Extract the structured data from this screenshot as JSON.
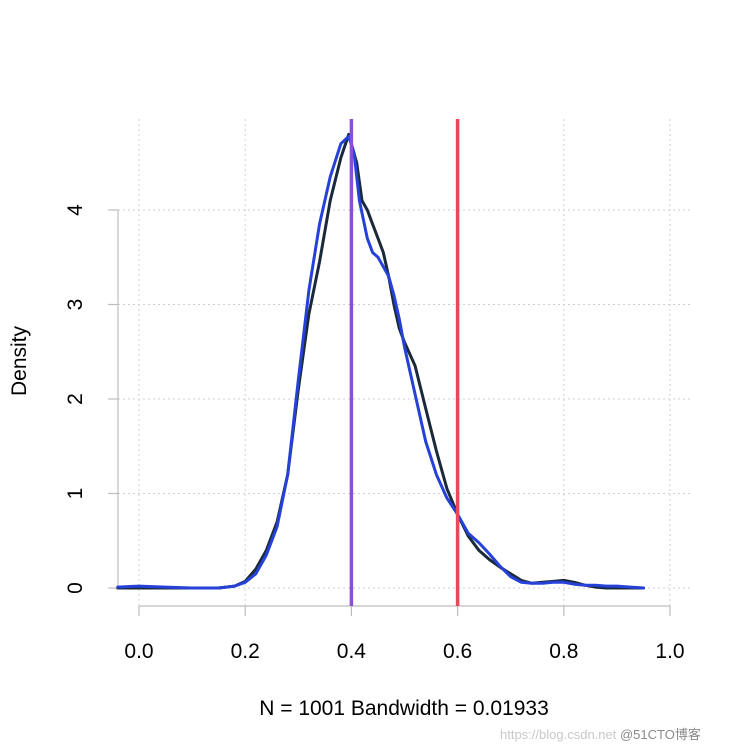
{
  "chart_data": {
    "type": "line",
    "title": "",
    "xlabel": "N = 1001   Bandwidth = 0.01933",
    "ylabel": "Density",
    "xlim": [
      -0.04,
      1.0
    ],
    "ylim": [
      0,
      4.8
    ],
    "x_ticks": [
      0.0,
      0.2,
      0.4,
      0.6,
      0.8,
      1.0
    ],
    "x_tick_labels": [
      "0.0",
      "0.2",
      "0.4",
      "0.6",
      "0.8",
      "1.0"
    ],
    "y_ticks": [
      0,
      1,
      2,
      3,
      4
    ],
    "y_tick_labels": [
      "0",
      "1",
      "2",
      "3",
      "4"
    ],
    "grid": true,
    "legend": "none",
    "series": [
      {
        "color": "#1a2a3a",
        "x": [
          -0.04,
          0.0,
          0.05,
          0.1,
          0.15,
          0.18,
          0.2,
          0.22,
          0.24,
          0.26,
          0.28,
          0.3,
          0.32,
          0.34,
          0.36,
          0.38,
          0.395,
          0.41,
          0.42,
          0.43,
          0.44,
          0.45,
          0.46,
          0.47,
          0.48,
          0.49,
          0.5,
          0.52,
          0.54,
          0.56,
          0.58,
          0.6,
          0.62,
          0.64,
          0.66,
          0.68,
          0.7,
          0.72,
          0.74,
          0.76,
          0.78,
          0.8,
          0.82,
          0.84,
          0.86,
          0.88,
          0.9,
          0.95
        ],
        "y": [
          0.0,
          0.0,
          0.0,
          0.0,
          0.0,
          0.02,
          0.07,
          0.2,
          0.4,
          0.7,
          1.2,
          2.1,
          2.9,
          3.45,
          4.1,
          4.55,
          4.8,
          4.5,
          4.1,
          4.0,
          3.85,
          3.7,
          3.55,
          3.3,
          3.0,
          2.75,
          2.6,
          2.35,
          1.9,
          1.45,
          1.05,
          0.78,
          0.55,
          0.4,
          0.3,
          0.22,
          0.15,
          0.08,
          0.05,
          0.06,
          0.07,
          0.08,
          0.06,
          0.03,
          0.01,
          0.0,
          0.0,
          0.0
        ]
      },
      {
        "color": "#2641d8",
        "x": [
          -0.04,
          0.0,
          0.05,
          0.1,
          0.15,
          0.18,
          0.2,
          0.22,
          0.24,
          0.26,
          0.28,
          0.3,
          0.32,
          0.34,
          0.36,
          0.38,
          0.395,
          0.405,
          0.415,
          0.43,
          0.44,
          0.45,
          0.46,
          0.47,
          0.48,
          0.49,
          0.5,
          0.52,
          0.54,
          0.56,
          0.58,
          0.6,
          0.62,
          0.64,
          0.66,
          0.68,
          0.7,
          0.72,
          0.74,
          0.76,
          0.78,
          0.8,
          0.82,
          0.84,
          0.86,
          0.88,
          0.9,
          0.95
        ],
        "y": [
          0.01,
          0.02,
          0.01,
          0.0,
          0.0,
          0.02,
          0.06,
          0.15,
          0.35,
          0.65,
          1.2,
          2.2,
          3.15,
          3.85,
          4.35,
          4.7,
          4.78,
          4.6,
          4.1,
          3.7,
          3.55,
          3.5,
          3.4,
          3.3,
          3.1,
          2.85,
          2.55,
          2.05,
          1.55,
          1.2,
          0.95,
          0.78,
          0.58,
          0.48,
          0.36,
          0.23,
          0.12,
          0.06,
          0.05,
          0.05,
          0.06,
          0.06,
          0.04,
          0.03,
          0.03,
          0.02,
          0.02,
          0.0
        ]
      }
    ],
    "vlines": [
      {
        "x": 0.4,
        "color": "#8a4fd6"
      },
      {
        "x": 0.6,
        "color": "#e8485a"
      }
    ]
  },
  "watermark": {
    "url": "https://blog.csdn.net",
    "brand": "@51CTO博客"
  }
}
